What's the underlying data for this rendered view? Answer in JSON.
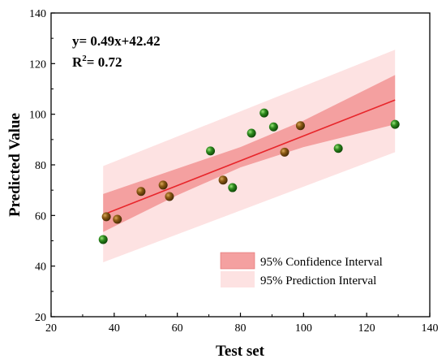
{
  "chart_data": {
    "type": "scatter",
    "xlabel": "Test set",
    "ylabel": "Predicted Value",
    "xlim": [
      20,
      140
    ],
    "ylim": [
      20,
      140
    ],
    "x_ticks": [
      "20",
      "40",
      "60",
      "80",
      "100",
      "120",
      "140"
    ],
    "y_ticks": [
      "20",
      "40",
      "60",
      "80",
      "100",
      "120",
      "140"
    ],
    "annotations": {
      "equation": "y= 0.49x+42.42",
      "r2_prefix": "R",
      "r2_sup": "2",
      "r2_value": "= 0.72"
    },
    "fit": {
      "slope": 0.49,
      "intercept": 42.42,
      "x_range": [
        36.5,
        129
      ],
      "color": "#e8262b"
    },
    "confidence_band": {
      "name": "95% Confidence Interval",
      "color": "#f4a0a0",
      "points": [
        {
          "x": 36.5,
          "lower": 53.5,
          "upper": 68.5
        },
        {
          "x": 60,
          "lower": 68.0,
          "upper": 78.5
        },
        {
          "x": 80,
          "lower": 79.0,
          "upper": 87.0
        },
        {
          "x": 100,
          "lower": 87.0,
          "upper": 97.5
        },
        {
          "x": 129,
          "lower": 96.0,
          "upper": 115.5
        }
      ]
    },
    "prediction_band": {
      "name": "95% Prediction Interval",
      "color": "#fde2e2",
      "points": [
        {
          "x": 36.5,
          "lower": 41.5,
          "upper": 79.5
        },
        {
          "x": 129,
          "lower": 85.0,
          "upper": 125.5
        }
      ]
    },
    "points": [
      {
        "x": 36.5,
        "y": 50.5,
        "color": "green"
      },
      {
        "x": 37.5,
        "y": 59.5,
        "color": "brown"
      },
      {
        "x": 41.0,
        "y": 58.5,
        "color": "brown"
      },
      {
        "x": 48.5,
        "y": 69.5,
        "color": "brown"
      },
      {
        "x": 55.5,
        "y": 72.0,
        "color": "brown"
      },
      {
        "x": 57.5,
        "y": 67.5,
        "color": "brown"
      },
      {
        "x": 70.5,
        "y": 85.5,
        "color": "green"
      },
      {
        "x": 74.5,
        "y": 74.0,
        "color": "brown"
      },
      {
        "x": 77.5,
        "y": 71.0,
        "color": "green"
      },
      {
        "x": 83.5,
        "y": 92.5,
        "color": "green"
      },
      {
        "x": 87.5,
        "y": 100.5,
        "color": "green"
      },
      {
        "x": 90.5,
        "y": 95.0,
        "color": "green"
      },
      {
        "x": 94.0,
        "y": 85.0,
        "color": "brown"
      },
      {
        "x": 99.0,
        "y": 95.5,
        "color": "brown"
      },
      {
        "x": 111.0,
        "y": 86.5,
        "color": "green"
      },
      {
        "x": 129.0,
        "y": 96.0,
        "color": "green"
      }
    ],
    "legend": {
      "placement": "bottom-right",
      "entries": [
        {
          "label": "95% Confidence Interval",
          "color": "#f4a0a0"
        },
        {
          "label": "95% Prediction Interval",
          "color": "#fde2e2"
        }
      ]
    },
    "colors": {
      "green_marker": "#2e8b1e",
      "brown_marker": "#8b5a14"
    }
  }
}
